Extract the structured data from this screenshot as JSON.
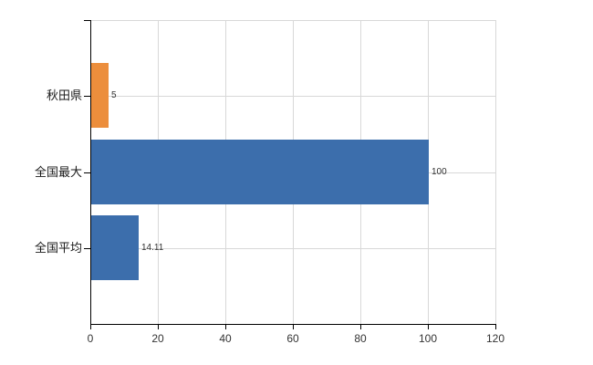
{
  "chart_data": {
    "type": "bar",
    "orientation": "horizontal",
    "title": "",
    "xlabel": "",
    "ylabel": "",
    "categories": [
      "秋田県",
      "全国最大",
      "全国平均"
    ],
    "values": [
      5,
      100,
      14.11
    ],
    "value_labels": [
      "5",
      "100",
      "14.11"
    ],
    "bar_colors": [
      "#EC8E3C",
      "#3C6EAC",
      "#3C6EAC"
    ],
    "xlim": [
      0,
      120
    ],
    "x_ticks": [
      0,
      20,
      40,
      60,
      80,
      100,
      120
    ],
    "grid": true,
    "legend": false
  },
  "style": {
    "highlight_bar_color": "#EC8E3C",
    "default_bar_color": "#3C6EAC",
    "grid_color": "#D8D8D8",
    "axis_color": "#000000",
    "tick_color": "#333333",
    "text_color": "#1a1a1a",
    "background": "#ffffff"
  }
}
